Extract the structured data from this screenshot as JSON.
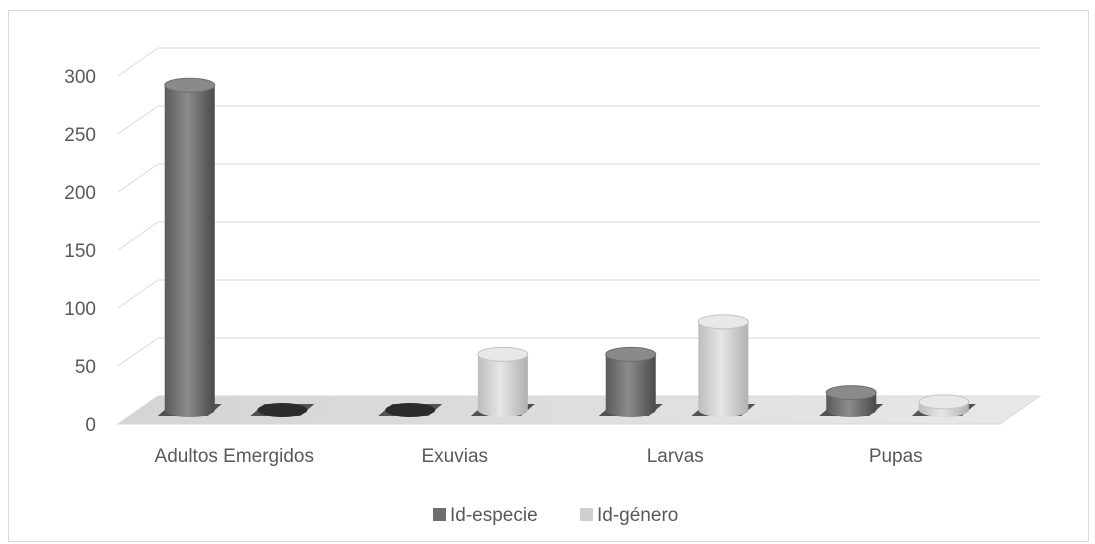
{
  "chart_data": {
    "type": "bar",
    "style": "3d-cylinder",
    "categories": [
      "Adultos Emergidos",
      "Exuvias",
      "Larvas",
      "Pupas"
    ],
    "series": [
      {
        "name": "Id-especie",
        "values": [
          280,
          0,
          48,
          15
        ],
        "color": "#7f7f7f"
      },
      {
        "name": "Id-género",
        "values": [
          0,
          48,
          76,
          7
        ],
        "color": "#d0d0d0"
      }
    ],
    "ylim": [
      0,
      300
    ],
    "yticks": [
      0,
      50,
      100,
      150,
      200,
      250,
      300
    ],
    "grid": true,
    "legend_position": "bottom"
  }
}
